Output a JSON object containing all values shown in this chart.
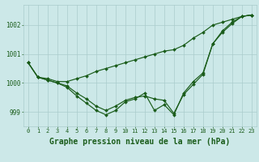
{
  "title": "Graphe pression niveau de la mer (hPa)",
  "xlabel_hours": [
    0,
    1,
    2,
    3,
    4,
    5,
    6,
    7,
    8,
    9,
    10,
    11,
    12,
    13,
    14,
    15,
    16,
    17,
    18,
    19,
    20,
    21,
    22,
    23
  ],
  "line1": [
    1000.7,
    1000.2,
    1000.15,
    1000.05,
    1000.05,
    1000.15,
    1000.25,
    1000.4,
    1000.5,
    1000.6,
    1000.7,
    1000.8,
    1000.9,
    1001.0,
    1001.1,
    1001.15,
    1001.3,
    1001.55,
    1001.75,
    1002.0,
    1002.1,
    1002.2,
    1002.3,
    1002.35
  ],
  "line2": [
    1000.7,
    1000.2,
    1000.1,
    1000.0,
    999.9,
    999.65,
    999.45,
    999.2,
    999.05,
    999.2,
    999.4,
    999.5,
    999.55,
    999.45,
    999.4,
    998.95,
    999.6,
    999.95,
    1000.3,
    1001.35,
    1001.8,
    1002.1,
    1002.3,
    1002.35
  ],
  "line3": [
    1000.7,
    1000.2,
    1000.1,
    1000.0,
    999.85,
    999.55,
    999.3,
    999.05,
    998.9,
    999.05,
    999.35,
    999.45,
    999.65,
    999.05,
    999.25,
    998.9,
    999.65,
    1000.05,
    1000.35,
    1001.35,
    1001.75,
    1002.05,
    1002.3,
    1002.35
  ],
  "bg_color": "#cce8e8",
  "line_color": "#1a5c1a",
  "grid_color": "#aacccc",
  "ylim": [
    998.5,
    1002.7
  ],
  "yticks": [
    999,
    1000,
    1001,
    1002
  ],
  "title_fontsize": 7,
  "tick_fontsize": 5
}
